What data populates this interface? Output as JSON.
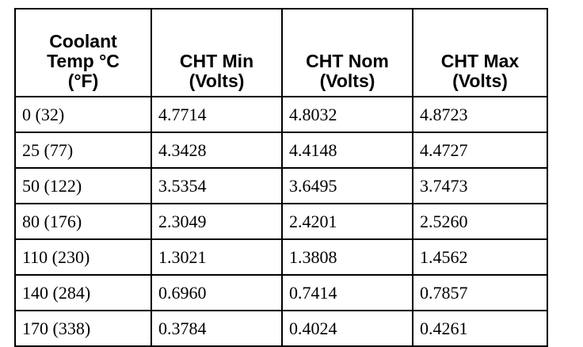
{
  "table": {
    "header": [
      "Coolant\nTemp °C\n(°F)",
      "CHT Min\n(Volts)",
      "CHT Nom\n(Volts)",
      "CHT Max\n(Volts)"
    ],
    "rows": [
      [
        "0 (32)",
        "4.7714",
        "4.8032",
        "4.8723"
      ],
      [
        "25 (77)",
        "4.3428",
        "4.4148",
        "4.4727"
      ],
      [
        "50 (122)",
        "3.5354",
        "3.6495",
        "3.7473"
      ],
      [
        "80 (176)",
        "2.3049",
        "2.4201",
        "2.5260"
      ],
      [
        "110 (230)",
        "1.3021",
        "1.3808",
        "1.4562"
      ],
      [
        "140 (284)",
        "0.6960",
        "0.7414",
        "0.7857"
      ],
      [
        "170 (338)",
        "0.3784",
        "0.4024",
        "0.4261"
      ]
    ]
  }
}
